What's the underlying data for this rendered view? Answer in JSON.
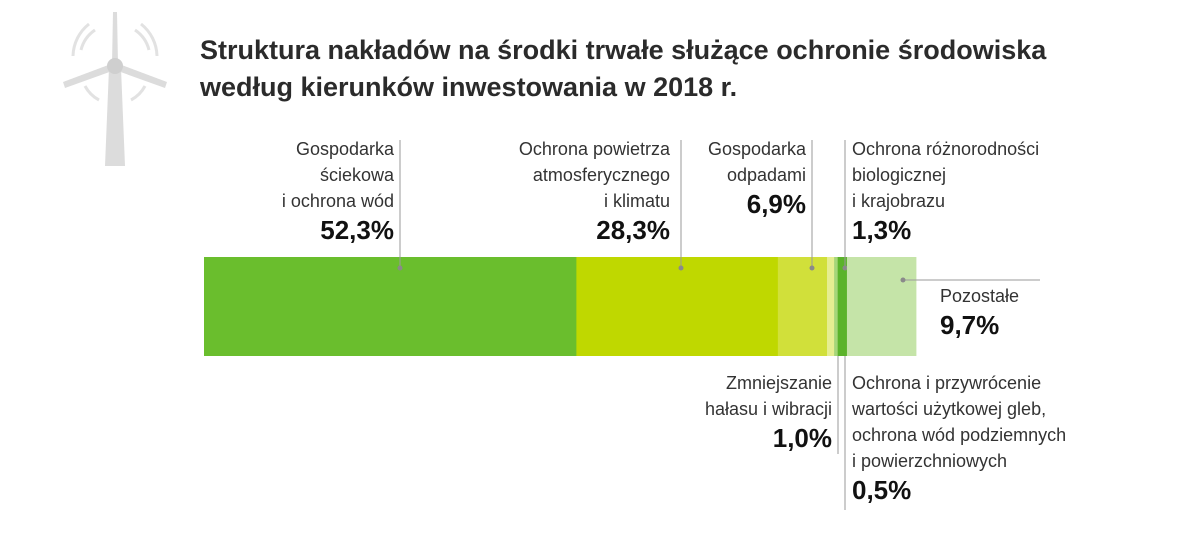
{
  "title": {
    "line1": "Struktura nakładów na środki trwałe służące ochronie środowiska",
    "line2": "według kierunków inwestowania w 2018 r."
  },
  "icon": "wind-turbine-icon",
  "chart_data": {
    "type": "bar",
    "orientation": "horizontal-stacked",
    "title": "Struktura nakładów na środki trwałe służące ochronie środowiska według kierunków inwestowania w 2018 r.",
    "unit": "%",
    "segments": [
      {
        "name": "Gospodarka\nściekowa\ni ochrona wód",
        "value": 52.3,
        "label": "52,3%",
        "color": "#6abe2d"
      },
      {
        "name": "Ochrona powietrza\natmosferycznego\ni  klimatu",
        "value": 28.3,
        "label": "28,3%",
        "color": "#bfd800"
      },
      {
        "name": "Gospodarka\nodpadami",
        "value": 6.9,
        "label": "6,9%",
        "color": "#d1e03a"
      },
      {
        "name": "Zmniejszanie\nhałasu i wibracji",
        "value": 1.0,
        "label": "1,0%",
        "color": "#e6ee91"
      },
      {
        "name": "Ochrona i przywrócenie\nwartości użytkowej gleb,\nochrona wód podziemnych\ni powierzchniowych",
        "value": 0.5,
        "label": "0,5%",
        "color": "#a6d67a"
      },
      {
        "name": "Ochrona różnorodności\nbiologicznej\ni krajobrazu",
        "value": 1.3,
        "label": "1,3%",
        "color": "#5bb32a"
      },
      {
        "name": "Pozostałe",
        "value": 9.7,
        "label": "9,7%",
        "color": "#c5e4a8"
      }
    ]
  }
}
